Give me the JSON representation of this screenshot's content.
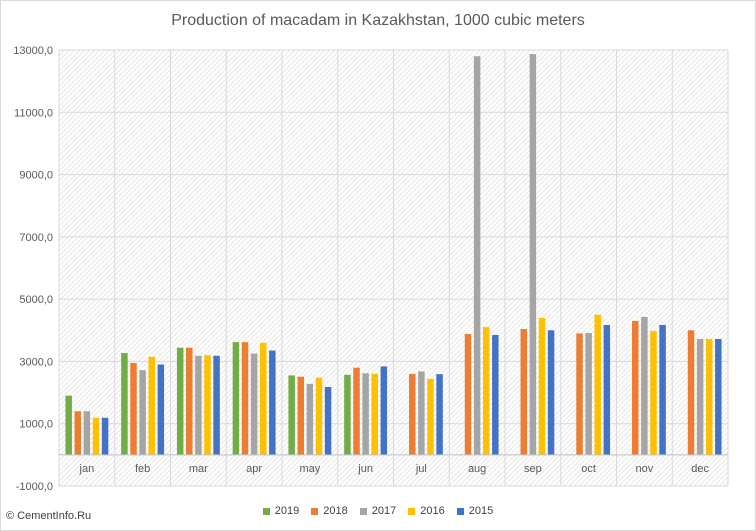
{
  "chart_data": {
    "type": "bar",
    "title": "Production of macadam in Kazakhstan, 1000 cubic meters",
    "categories": [
      "jan",
      "feb",
      "mar",
      "apr",
      "may",
      "jun",
      "jul",
      "aug",
      "sep",
      "oct",
      "nov",
      "dec"
    ],
    "series": [
      {
        "name": "2019",
        "color": "#70ad47",
        "values": [
          1900,
          3270,
          3440,
          3620,
          2550,
          2570,
          null,
          null,
          null,
          null,
          null,
          null
        ]
      },
      {
        "name": "2018",
        "color": "#ed7d31",
        "values": [
          1400,
          2950,
          3440,
          3620,
          2510,
          2800,
          2600,
          3880,
          4040,
          3900,
          4300,
          4000
        ]
      },
      {
        "name": "2017",
        "color": "#a5a5a5",
        "values": [
          1400,
          2720,
          3180,
          3250,
          2280,
          2620,
          2680,
          12800,
          12870,
          3910,
          4430,
          3720
        ]
      },
      {
        "name": "2016",
        "color": "#ffc000",
        "values": [
          1190,
          3150,
          3200,
          3600,
          2480,
          2600,
          2440,
          4100,
          4400,
          4500,
          3980,
          3720
        ]
      },
      {
        "name": "2015",
        "color": "#4472c4",
        "values": [
          1190,
          2900,
          3180,
          3350,
          2180,
          2840,
          2590,
          3850,
          4000,
          4170,
          4170,
          3720
        ]
      }
    ],
    "yticks": [
      "-1000,0",
      "1000,0",
      "3000,0",
      "5000,0",
      "7000,0",
      "9000,0",
      "11000,0",
      "13000,0"
    ],
    "ylim": [
      -1000,
      13000
    ],
    "grid": true,
    "legend_position": "bottom"
  },
  "footer": {
    "watermark": "© CementInfo.Ru"
  }
}
